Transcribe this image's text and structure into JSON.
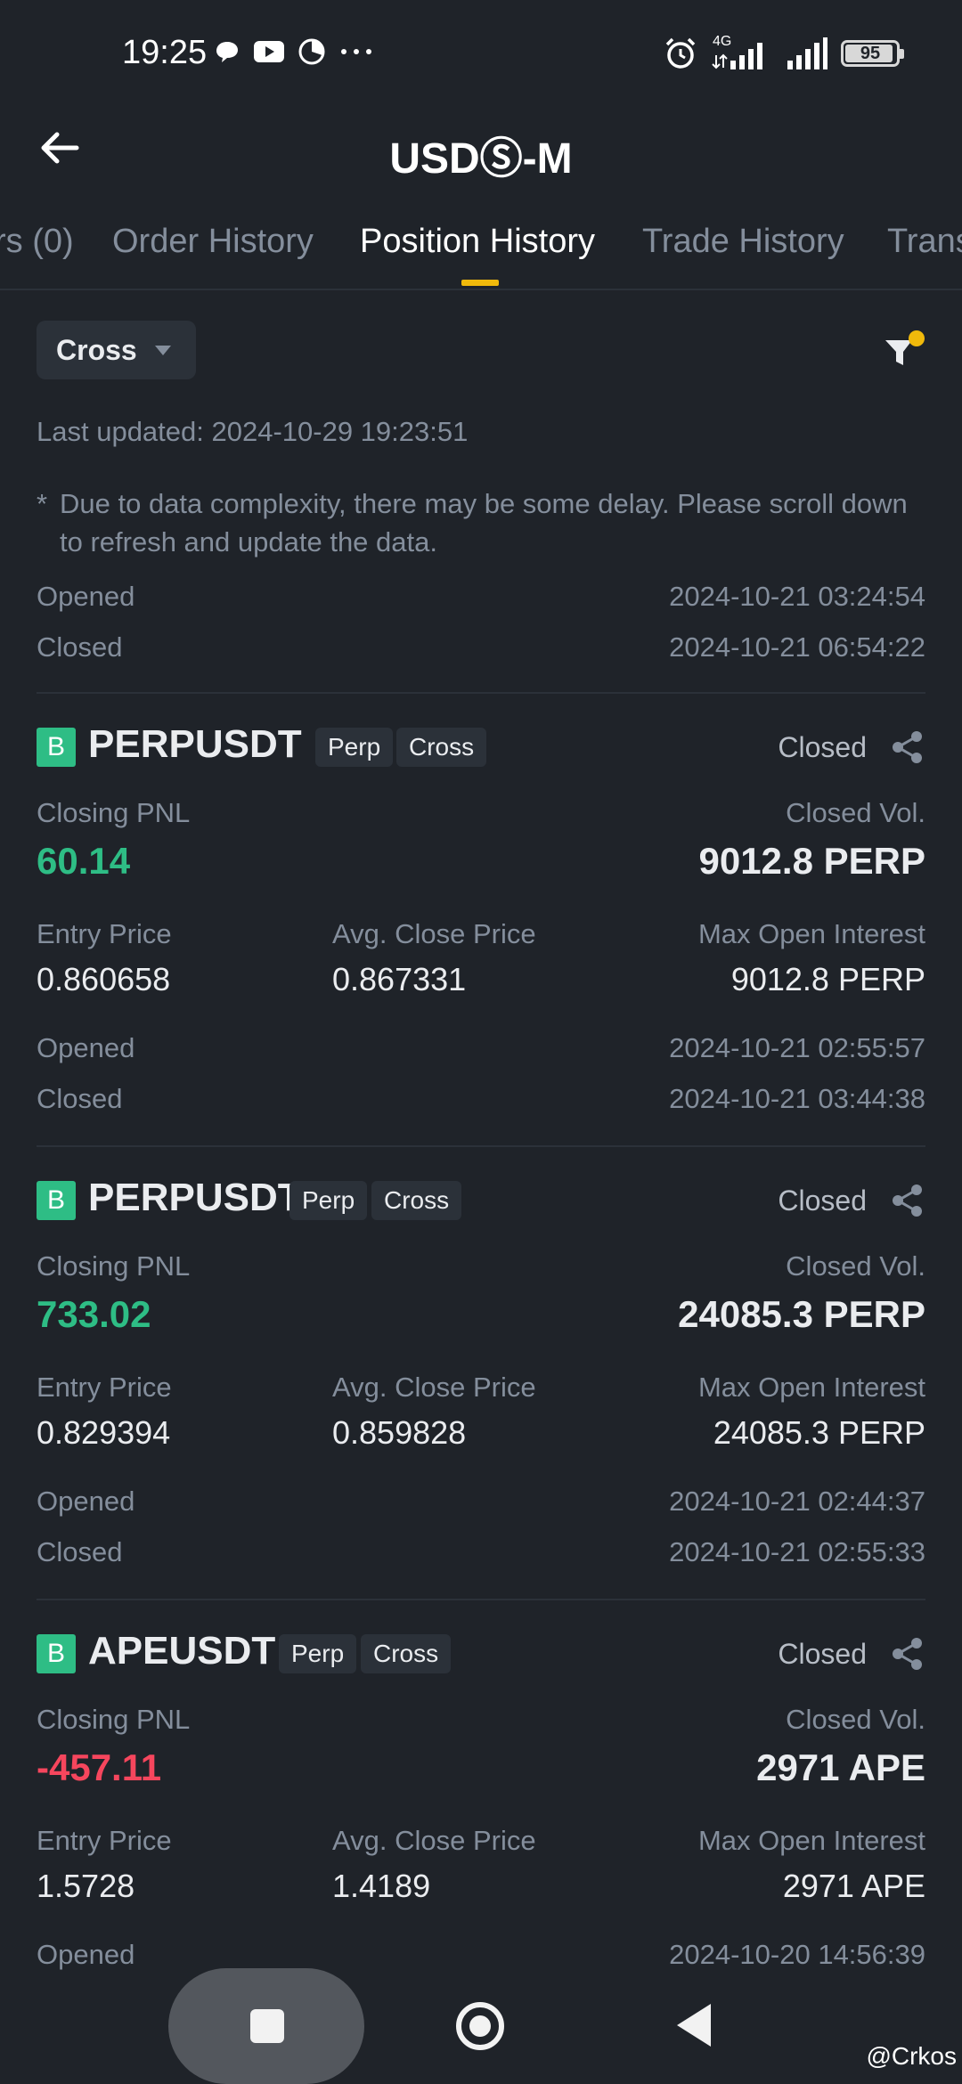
{
  "status_bar": {
    "time": "19:25",
    "network": "4G",
    "battery": "95"
  },
  "header": {
    "title": "USDⓈ-M"
  },
  "tabs": [
    {
      "label": "rs (0)"
    },
    {
      "label": "Order History"
    },
    {
      "label": "Position History"
    },
    {
      "label": "Trade History"
    },
    {
      "label": "Trans"
    }
  ],
  "filter": {
    "margin_mode": "Cross"
  },
  "info": {
    "last_updated": "Last updated: 2024-10-29 19:23:51",
    "note_star": "*",
    "note": "Due to data complexity, there may be some delay. Please scroll down to refresh and update the data."
  },
  "labels": {
    "opened": "Opened",
    "closed": "Closed",
    "closing_pnl": "Closing PNL",
    "closed_vol": "Closed Vol.",
    "entry_price": "Entry Price",
    "avg_close_price": "Avg. Close Price",
    "max_open_interest": "Max Open Interest",
    "status_closed": "Closed",
    "side": "B"
  },
  "top_partial": {
    "opened": "2024-10-21 03:24:54",
    "closed": "2024-10-21 06:54:22"
  },
  "positions": [
    {
      "symbol": "PERPUSDT",
      "tags": [
        "Perp",
        "Cross"
      ],
      "closing_pnl": "60.14",
      "closed_vol": "9012.8 PERP",
      "entry_price": "0.860658",
      "avg_close_price": "0.867331",
      "max_open_interest": "9012.8 PERP",
      "opened": "2024-10-21 02:55:57",
      "closed": "2024-10-21 03:44:38"
    },
    {
      "symbol": "PERPUSDT",
      "tags": [
        "Perp",
        "Cross"
      ],
      "closing_pnl": "733.02",
      "closed_vol": "24085.3 PERP",
      "entry_price": "0.829394",
      "avg_close_price": "0.859828",
      "max_open_interest": "24085.3 PERP",
      "opened": "2024-10-21 02:44:37",
      "closed": "2024-10-21 02:55:33"
    },
    {
      "symbol": "APEUSDT",
      "tags": [
        "Perp",
        "Cross"
      ],
      "closing_pnl": "-457.11",
      "closed_vol": "2971 APE",
      "entry_price": "1.5728",
      "avg_close_price": "1.4189",
      "max_open_interest": "2971 APE",
      "opened": "2024-10-20 14:56:39"
    }
  ],
  "colors": {
    "background": "#1f2329",
    "accent": "#f0b90b",
    "profit": "#2ebd85",
    "loss": "#f6465d",
    "muted": "#848e9c"
  },
  "watermark": "@Crkos"
}
